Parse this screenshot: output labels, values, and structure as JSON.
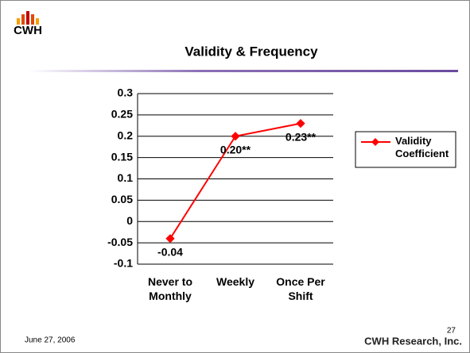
{
  "logo": "CWH",
  "footer": {
    "date": "June 27, 2006",
    "page": "27",
    "company": "CWH Research, Inc."
  },
  "chart_data": {
    "type": "line",
    "title": "Validity & Frequency",
    "categories": [
      "Never to Monthly",
      "Weekly",
      "Once Per Shift"
    ],
    "series": [
      {
        "name": "Validity Coefficient",
        "color": "#ff0000",
        "values": [
          -0.04,
          0.2,
          0.23
        ],
        "value_labels": [
          "-0.04",
          "0.20**",
          "0.23**"
        ]
      }
    ],
    "ylim": [
      -0.1,
      0.3
    ],
    "yticks": [
      -0.1,
      -0.05,
      0,
      0.05,
      0.1,
      0.15,
      0.2,
      0.25,
      0.3
    ],
    "grid": true,
    "legend": "right"
  }
}
